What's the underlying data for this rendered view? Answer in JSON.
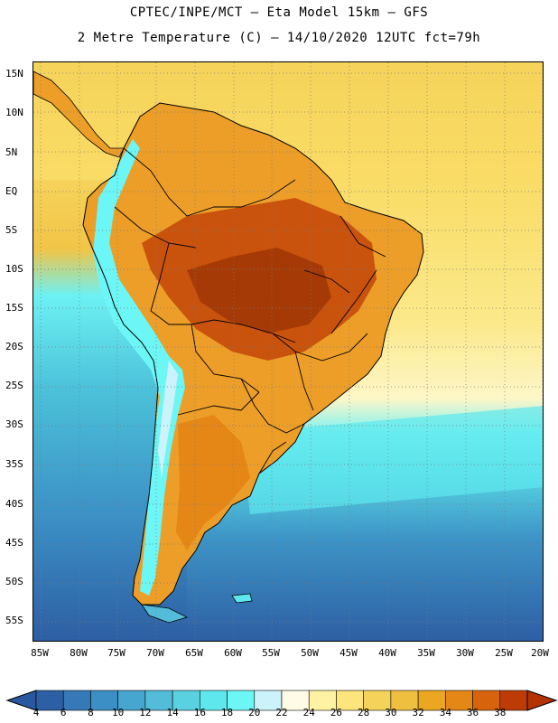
{
  "title": {
    "line1": "CPTEC/INPE/MCT –  Eta Model 15km – GFS",
    "line2": "2 Metre Temperature (C) – 14/10/2020 12UTC fct=79h"
  },
  "map": {
    "lat_labels": [
      "15N",
      "10N",
      "5N",
      "EQ",
      "5S",
      "10S",
      "15S",
      "20S",
      "25S",
      "30S",
      "35S",
      "40S",
      "45S",
      "50S",
      "55S"
    ],
    "lon_labels": [
      "85W",
      "80W",
      "75W",
      "70W",
      "65W",
      "60W",
      "55W",
      "50W",
      "45W",
      "40W",
      "35W",
      "30W",
      "25W",
      "20W"
    ]
  },
  "colorbar": {
    "labels": [
      "4",
      "6",
      "8",
      "10",
      "12",
      "14",
      "16",
      "18",
      "20",
      "22",
      "24",
      "26",
      "28",
      "30",
      "32",
      "34",
      "36",
      "38"
    ],
    "colors": [
      "#2c5fa3",
      "#3579b8",
      "#3c8fc4",
      "#46a6cf",
      "#52bcd9",
      "#5ad1e0",
      "#5ee8ee",
      "#6cf6f6",
      "#ccf2fb",
      "#fffbe6",
      "#fff3a3",
      "#fbe57c",
      "#f5d35a",
      "#efc03f",
      "#eba622",
      "#e58717",
      "#d7640c",
      "#bd3c06"
    ],
    "low_color": "#2a58a0",
    "high_color": "#b33304"
  }
}
